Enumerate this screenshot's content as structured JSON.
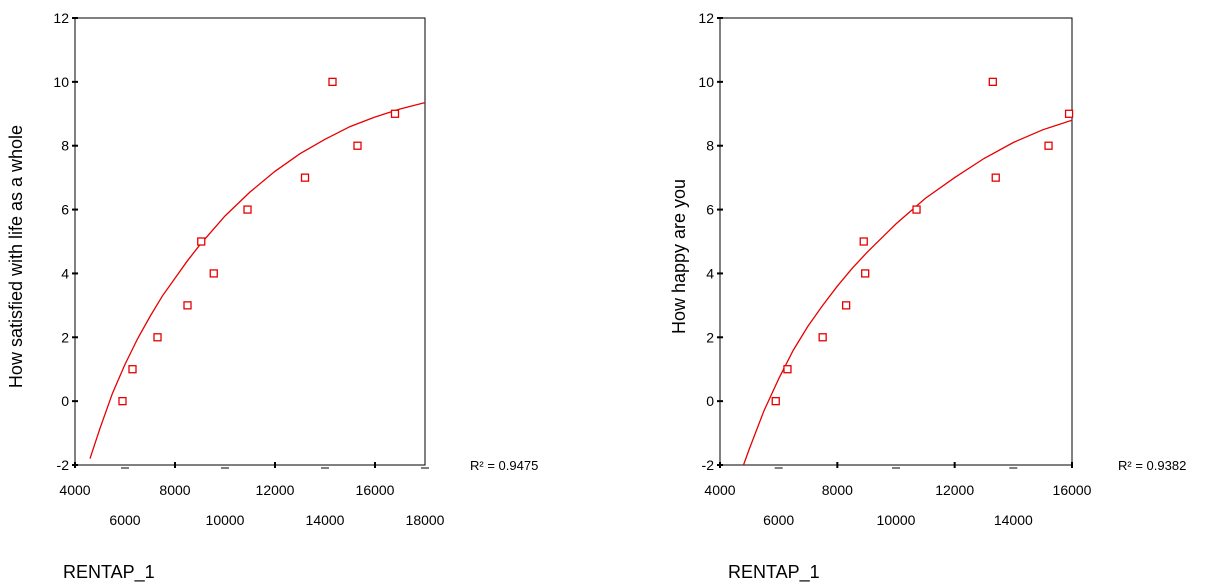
{
  "chart_data": [
    {
      "type": "scatter",
      "xlabel": "RENTAP_1",
      "ylabel": "How satisfied with life as a whole",
      "xlim": [
        4000,
        18000
      ],
      "ylim": [
        -2,
        12
      ],
      "x_ticks_upper": [
        "4000",
        "8000",
        "12000",
        "16000"
      ],
      "x_ticks_lower": [
        "6000",
        "10000",
        "14000",
        "18000"
      ],
      "y_ticks": [
        "12",
        "10",
        "8",
        "6",
        "4",
        "2",
        "0",
        "-2"
      ],
      "points": [
        {
          "x": 5900,
          "y": 0
        },
        {
          "x": 6300,
          "y": 1
        },
        {
          "x": 7300,
          "y": 2
        },
        {
          "x": 8500,
          "y": 3
        },
        {
          "x": 9050,
          "y": 5
        },
        {
          "x": 9550,
          "y": 4
        },
        {
          "x": 10900,
          "y": 6
        },
        {
          "x": 13200,
          "y": 7
        },
        {
          "x": 14300,
          "y": 10
        },
        {
          "x": 15300,
          "y": 8
        },
        {
          "x": 16800,
          "y": 9
        }
      ],
      "fit_curve": [
        [
          4600,
          -1.8
        ],
        [
          5000,
          -0.85
        ],
        [
          5500,
          0.25
        ],
        [
          6000,
          1.15
        ],
        [
          6500,
          1.95
        ],
        [
          7000,
          2.65
        ],
        [
          7500,
          3.3
        ],
        [
          8000,
          3.85
        ],
        [
          8500,
          4.4
        ],
        [
          9000,
          4.9
        ],
        [
          9500,
          5.35
        ],
        [
          10000,
          5.8
        ],
        [
          11000,
          6.55
        ],
        [
          12000,
          7.2
        ],
        [
          13000,
          7.75
        ],
        [
          14000,
          8.2
        ],
        [
          15000,
          8.6
        ],
        [
          16000,
          8.9
        ],
        [
          17000,
          9.15
        ],
        [
          18000,
          9.35
        ]
      ],
      "r_squared": "R² = 0.9475",
      "marker_color": "#e60000",
      "curve_color": "#e60000"
    },
    {
      "type": "scatter",
      "xlabel": "RENTAP_1",
      "ylabel": "How happy are you",
      "xlim": [
        4000,
        16000
      ],
      "ylim": [
        -2,
        12
      ],
      "x_ticks_upper": [
        "4000",
        "8000",
        "12000",
        "16000"
      ],
      "x_ticks_lower": [
        "6000",
        "10000",
        "14000"
      ],
      "y_ticks": [
        "12",
        "10",
        "8",
        "6",
        "4",
        "2",
        "0",
        "-2"
      ],
      "points": [
        {
          "x": 5900,
          "y": 0
        },
        {
          "x": 6300,
          "y": 1
        },
        {
          "x": 7500,
          "y": 2
        },
        {
          "x": 8300,
          "y": 3
        },
        {
          "x": 8900,
          "y": 5
        },
        {
          "x": 8950,
          "y": 4
        },
        {
          "x": 10700,
          "y": 6
        },
        {
          "x": 13300,
          "y": 10
        },
        {
          "x": 13400,
          "y": 7
        },
        {
          "x": 15200,
          "y": 8
        },
        {
          "x": 15900,
          "y": 9
        }
      ],
      "fit_curve": [
        [
          4800,
          -2
        ],
        [
          5000,
          -1.5
        ],
        [
          5500,
          -0.3
        ],
        [
          6000,
          0.7
        ],
        [
          6500,
          1.6
        ],
        [
          7000,
          2.35
        ],
        [
          7500,
          3.0
        ],
        [
          8000,
          3.6
        ],
        [
          8500,
          4.15
        ],
        [
          9000,
          4.65
        ],
        [
          9500,
          5.1
        ],
        [
          10000,
          5.55
        ],
        [
          11000,
          6.35
        ],
        [
          12000,
          7.0
        ],
        [
          13000,
          7.6
        ],
        [
          14000,
          8.1
        ],
        [
          15000,
          8.5
        ],
        [
          16000,
          8.8
        ]
      ],
      "r_squared": "R² = 0.9382",
      "marker_color": "#e60000",
      "curve_color": "#e60000"
    }
  ]
}
